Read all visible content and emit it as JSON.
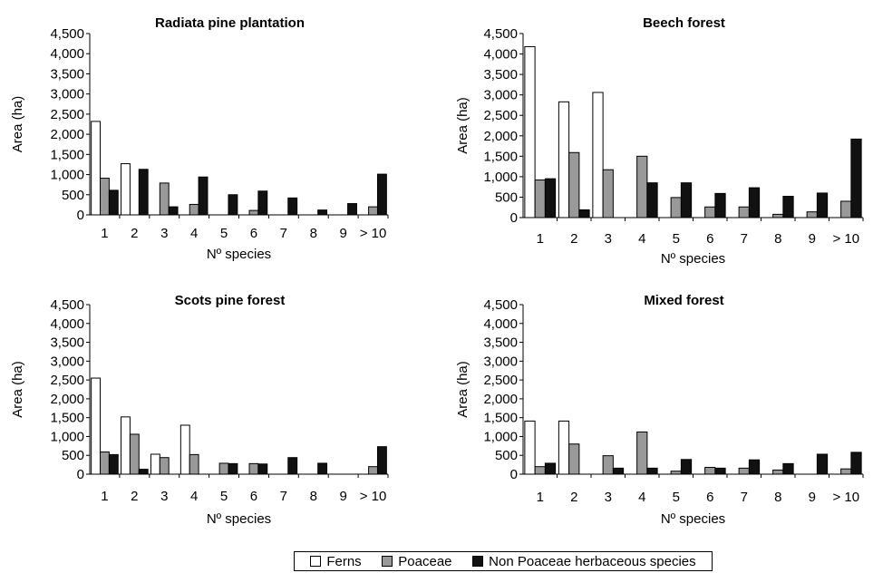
{
  "legend": {
    "items": [
      {
        "label": "Ferns",
        "color": "#ffffff"
      },
      {
        "label": "Poaceae",
        "color": "#999999"
      },
      {
        "label": "Non Poaceae herbaceous species",
        "color": "#111111"
      }
    ]
  },
  "chart_data": [
    {
      "type": "bar",
      "title": "Radiata pine plantation",
      "xlabel": "Nº species",
      "ylabel": "Area (ha)",
      "ylim": [
        0,
        4500
      ],
      "yticks": [
        "0",
        "500",
        "1,000",
        "1,500",
        "2,000",
        "2,500",
        "3,000",
        "3,500",
        "4,000",
        "4,500"
      ],
      "categories": [
        "1",
        "2",
        "3",
        "4",
        "5",
        "6",
        "7",
        "8",
        "9",
        "> 10"
      ],
      "series": [
        {
          "name": "Ferns",
          "color": "#ffffff",
          "values": [
            2320,
            1270,
            0,
            0,
            0,
            0,
            0,
            0,
            0,
            0
          ]
        },
        {
          "name": "Poaceae",
          "color": "#999999",
          "values": [
            910,
            0,
            790,
            260,
            0,
            110,
            0,
            0,
            0,
            200
          ]
        },
        {
          "name": "Non Poaceae herbaceous species",
          "color": "#111111",
          "values": [
            610,
            1130,
            200,
            940,
            500,
            590,
            420,
            120,
            280,
            1010
          ]
        }
      ]
    },
    {
      "type": "bar",
      "title": "Beech forest",
      "xlabel": "Nº species",
      "ylabel": "Area (ha)",
      "ylim": [
        0,
        4500
      ],
      "yticks": [
        "0",
        "500",
        "1,000",
        "1,500",
        "2,000",
        "2,500",
        "3,000",
        "3,500",
        "4,000",
        "4,500"
      ],
      "categories": [
        "1",
        "2",
        "3",
        "4",
        "5",
        "6",
        "7",
        "8",
        "9",
        "> 10"
      ],
      "series": [
        {
          "name": "Ferns",
          "color": "#ffffff",
          "values": [
            4180,
            2830,
            3060,
            0,
            0,
            0,
            0,
            0,
            0,
            0
          ]
        },
        {
          "name": "Poaceae",
          "color": "#999999",
          "values": [
            920,
            1590,
            1170,
            1500,
            490,
            260,
            260,
            80,
            140,
            400
          ]
        },
        {
          "name": "Non Poaceae herbaceous species",
          "color": "#111111",
          "values": [
            950,
            190,
            0,
            850,
            850,
            590,
            730,
            520,
            600,
            1920
          ]
        }
      ]
    },
    {
      "type": "bar",
      "title": "Scots pine forest",
      "xlabel": "Nº species",
      "ylabel": "Area (ha)",
      "ylim": [
        0,
        4500
      ],
      "yticks": [
        "0",
        "500",
        "1,000",
        "1,500",
        "2,000",
        "2,500",
        "3,000",
        "3,500",
        "4,000",
        "4,500"
      ],
      "categories": [
        "1",
        "2",
        "3",
        "4",
        "5",
        "6",
        "7",
        "8",
        "9",
        "> 10"
      ],
      "series": [
        {
          "name": "Ferns",
          "color": "#ffffff",
          "values": [
            2550,
            1520,
            530,
            1300,
            0,
            0,
            0,
            0,
            0,
            0
          ]
        },
        {
          "name": "Poaceae",
          "color": "#999999",
          "values": [
            590,
            1060,
            440,
            520,
            290,
            280,
            0,
            0,
            0,
            200
          ]
        },
        {
          "name": "Non Poaceae herbaceous species",
          "color": "#111111",
          "values": [
            520,
            130,
            0,
            0,
            280,
            270,
            440,
            290,
            0,
            730
          ]
        }
      ]
    },
    {
      "type": "bar",
      "title": "Mixed forest",
      "xlabel": "Nº species",
      "ylabel": "Area (ha)",
      "ylim": [
        0,
        4500
      ],
      "yticks": [
        "0",
        "500",
        "1,000",
        "1,500",
        "2,000",
        "2,500",
        "3,000",
        "3,500",
        "4,000",
        "4,500"
      ],
      "categories": [
        "1",
        "2",
        "3",
        "4",
        "5",
        "6",
        "7",
        "8",
        "9",
        "> 10"
      ],
      "series": [
        {
          "name": "Ferns",
          "color": "#ffffff",
          "values": [
            1410,
            1410,
            0,
            0,
            0,
            0,
            0,
            0,
            0,
            0
          ]
        },
        {
          "name": "Poaceae",
          "color": "#999999",
          "values": [
            200,
            800,
            490,
            1120,
            80,
            180,
            160,
            110,
            0,
            140
          ]
        },
        {
          "name": "Non Poaceae herbaceous species",
          "color": "#111111",
          "values": [
            290,
            0,
            160,
            160,
            390,
            160,
            380,
            280,
            530,
            580
          ]
        }
      ]
    }
  ]
}
